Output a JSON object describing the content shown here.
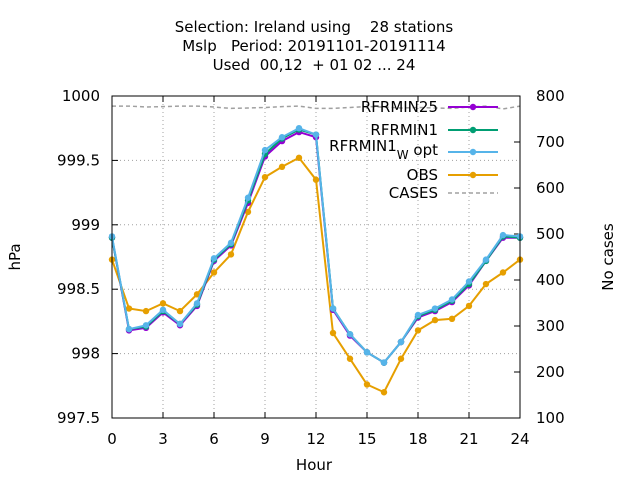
{
  "chart_data": {
    "type": "line",
    "title_lines": [
      "Selection: Ireland using    28 stations",
      "Mslp   Period: 20191101-20191114",
      "Used  00,12  + 01 02 ... 24"
    ],
    "xlabel": "Hour",
    "ylabel": "hPa",
    "y2label": "No cases",
    "xlim": [
      0,
      24
    ],
    "ylim": [
      997.5,
      1000
    ],
    "y2lim": [
      100,
      800
    ],
    "xticks": [
      0,
      3,
      6,
      9,
      12,
      15,
      18,
      21,
      24
    ],
    "yticks": [
      997.5,
      998,
      998.5,
      999,
      999.5,
      1000
    ],
    "y2ticks": [
      100,
      200,
      300,
      400,
      500,
      600,
      700,
      800
    ],
    "grid": true,
    "legend_position": "top-right",
    "x": [
      0,
      1,
      2,
      3,
      4,
      5,
      6,
      7,
      8,
      9,
      10,
      11,
      12,
      13,
      14,
      15,
      16,
      17,
      18,
      19,
      20,
      21,
      22,
      23,
      24
    ],
    "series": [
      {
        "name": "RFRMIN25",
        "color": "#9400d3",
        "axis": "y",
        "values": [
          998.9,
          998.18,
          998.2,
          998.32,
          998.22,
          998.37,
          998.72,
          998.84,
          999.17,
          999.53,
          999.65,
          999.72,
          999.68,
          998.34,
          998.14,
          998.01,
          997.93,
          998.09,
          998.28,
          998.33,
          998.4,
          998.53,
          998.72,
          998.9,
          998.9
        ]
      },
      {
        "name": "RFRMIN1",
        "color": "#009e73",
        "axis": "y",
        "values": [
          998.9,
          998.19,
          998.21,
          998.33,
          998.23,
          998.38,
          998.73,
          998.85,
          999.19,
          999.55,
          999.67,
          999.74,
          999.7,
          998.35,
          998.15,
          998.01,
          997.93,
          998.09,
          998.29,
          998.34,
          998.41,
          998.54,
          998.72,
          998.91,
          998.9
        ]
      },
      {
        "name": "RFRMIN1",
        "name_subscript": "W",
        "name_suffix": " opt",
        "color": "#56b4e9",
        "axis": "y",
        "values": [
          998.91,
          998.19,
          998.22,
          998.34,
          998.23,
          998.39,
          998.74,
          998.86,
          999.21,
          999.58,
          999.68,
          999.75,
          999.7,
          998.35,
          998.15,
          998.01,
          997.93,
          998.09,
          998.3,
          998.35,
          998.42,
          998.56,
          998.73,
          998.92,
          998.91
        ]
      },
      {
        "name": "OBS",
        "color": "#e69f00",
        "axis": "y",
        "values": [
          998.73,
          998.35,
          998.33,
          998.39,
          998.33,
          998.46,
          998.63,
          998.77,
          999.1,
          999.37,
          999.45,
          999.52,
          999.35,
          998.16,
          997.96,
          997.76,
          997.7,
          997.96,
          998.18,
          998.26,
          998.27,
          998.37,
          998.54,
          998.63,
          998.73
        ]
      },
      {
        "name": "CASES",
        "color": "#a0a0a0",
        "axis": "y2",
        "dashed": true,
        "values": [
          778,
          778,
          776,
          777,
          778,
          778,
          776,
          773,
          774,
          775,
          777,
          778,
          773,
          773,
          775,
          777,
          776,
          774,
          775,
          774,
          773,
          776,
          778,
          772,
          778
        ]
      }
    ]
  }
}
